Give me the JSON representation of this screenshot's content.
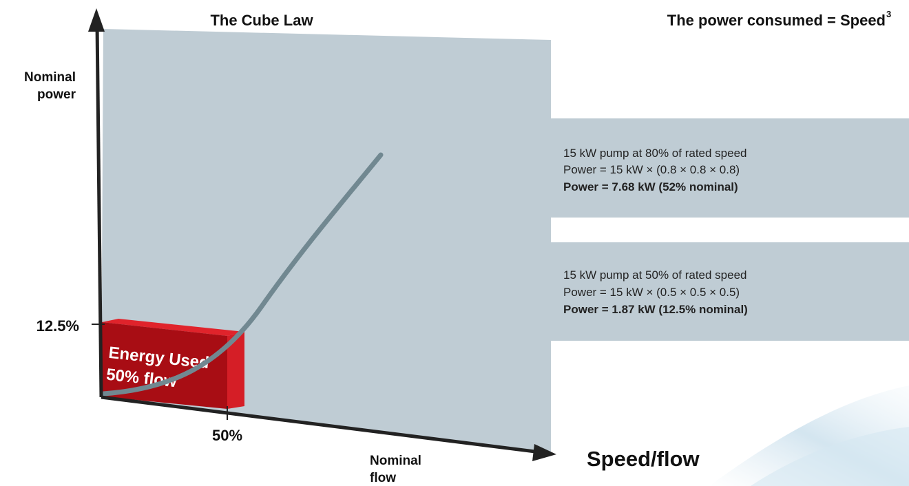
{
  "header": {
    "title": "The Cube Law",
    "formula": "The power consumed = Speed",
    "formula_exponent": "3"
  },
  "axes": {
    "y_label": [
      "Nominal",
      "power"
    ],
    "y_tick": "12.5%",
    "x_tick": "50%",
    "x_label": [
      "Nominal",
      "flow"
    ],
    "x_caption": "Speed/flow"
  },
  "energy_block": {
    "lines": [
      "Energy Used",
      "50% flow"
    ]
  },
  "examples": [
    {
      "lines": [
        "15 kW pump at 80% of rated speed",
        "Power = 15 kW × (0.8 × 0.8 × 0.8)",
        "Power = 7.68 kW (52% nominal)"
      ]
    },
    {
      "lines": [
        "15 kW pump at 50% of rated speed",
        "Power = 15 kW × (0.5 × 0.5 × 0.5)",
        "Power = 1.87 kW (12.5% nominal)"
      ]
    }
  ]
}
